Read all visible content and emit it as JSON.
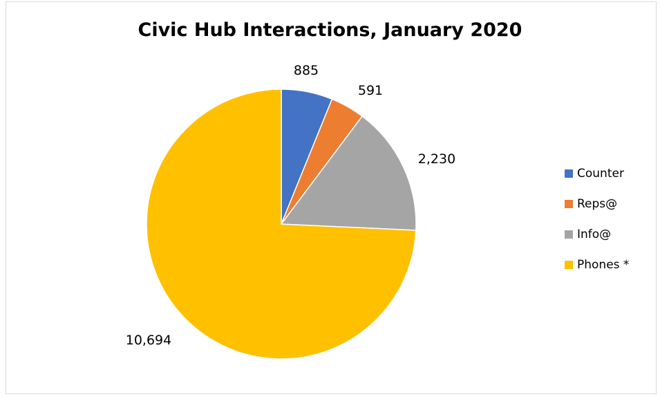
{
  "chart_data": {
    "type": "pie",
    "title": "Civic Hub Interactions, January 2020",
    "categories": [
      "Counter",
      "Reps@",
      "Info@",
      "Phones *"
    ],
    "values": [
      885,
      591,
      2230,
      10694
    ],
    "value_labels": [
      "885",
      "591",
      "2,230",
      "10,694"
    ],
    "colors": [
      "#4472C4",
      "#ED7D31",
      "#A5A5A5",
      "#FFC000"
    ],
    "start_angle_deg": 0,
    "direction": "clockwise",
    "legend_position": "right"
  }
}
